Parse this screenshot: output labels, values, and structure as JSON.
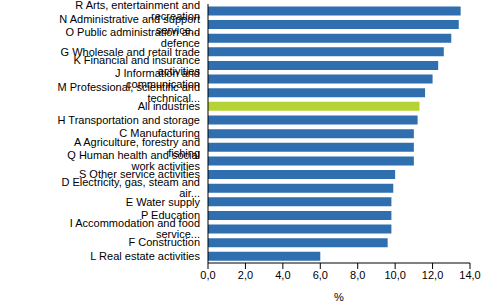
{
  "chart_data": {
    "type": "bar",
    "orientation": "horizontal",
    "x_label": "%",
    "categories": [
      "R Arts, entertainment and recreation",
      "N Administrative and support service...",
      "O Public administration and defence",
      "G Wholesale and retail trade",
      "K Financial and insurance activities",
      "J Information and communication",
      "M Professional, scientific and technical...",
      "All industries",
      "H Transportation and storage",
      "C Manufacturing",
      "A Agriculture, forestry and fishing",
      "Q Human health and social work activities",
      "S Other service activities",
      "D Electricity, gas, steam and air...",
      "E Water supply",
      "P Education",
      "I Accommodation and food service...",
      "F Construction",
      "L Real estate activities"
    ],
    "values": [
      13.5,
      13.4,
      13.0,
      12.6,
      12.3,
      12.0,
      11.6,
      11.3,
      11.2,
      11.0,
      11.0,
      11.0,
      10.0,
      9.9,
      9.8,
      9.8,
      9.8,
      9.6,
      6.0
    ],
    "colors": [
      "#2f6fb0",
      "#2f6fb0",
      "#2f6fb0",
      "#2f6fb0",
      "#2f6fb0",
      "#2f6fb0",
      "#2f6fb0",
      "#b5d334",
      "#2f6fb0",
      "#2f6fb0",
      "#2f6fb0",
      "#2f6fb0",
      "#2f6fb0",
      "#2f6fb0",
      "#2f6fb0",
      "#2f6fb0",
      "#2f6fb0",
      "#2f6fb0",
      "#2f6fb0"
    ],
    "xlim": [
      0,
      14
    ],
    "xticks": [
      {
        "value": 0,
        "label": "0,0"
      },
      {
        "value": 2,
        "label": "2,0"
      },
      {
        "value": 4,
        "label": "4,0"
      },
      {
        "value": 6,
        "label": "6,0"
      },
      {
        "value": 8,
        "label": "8,0"
      },
      {
        "value": 10,
        "label": "10,0"
      },
      {
        "value": 12,
        "label": "12,0"
      },
      {
        "value": 14,
        "label": "14,0"
      }
    ],
    "grid": false
  }
}
